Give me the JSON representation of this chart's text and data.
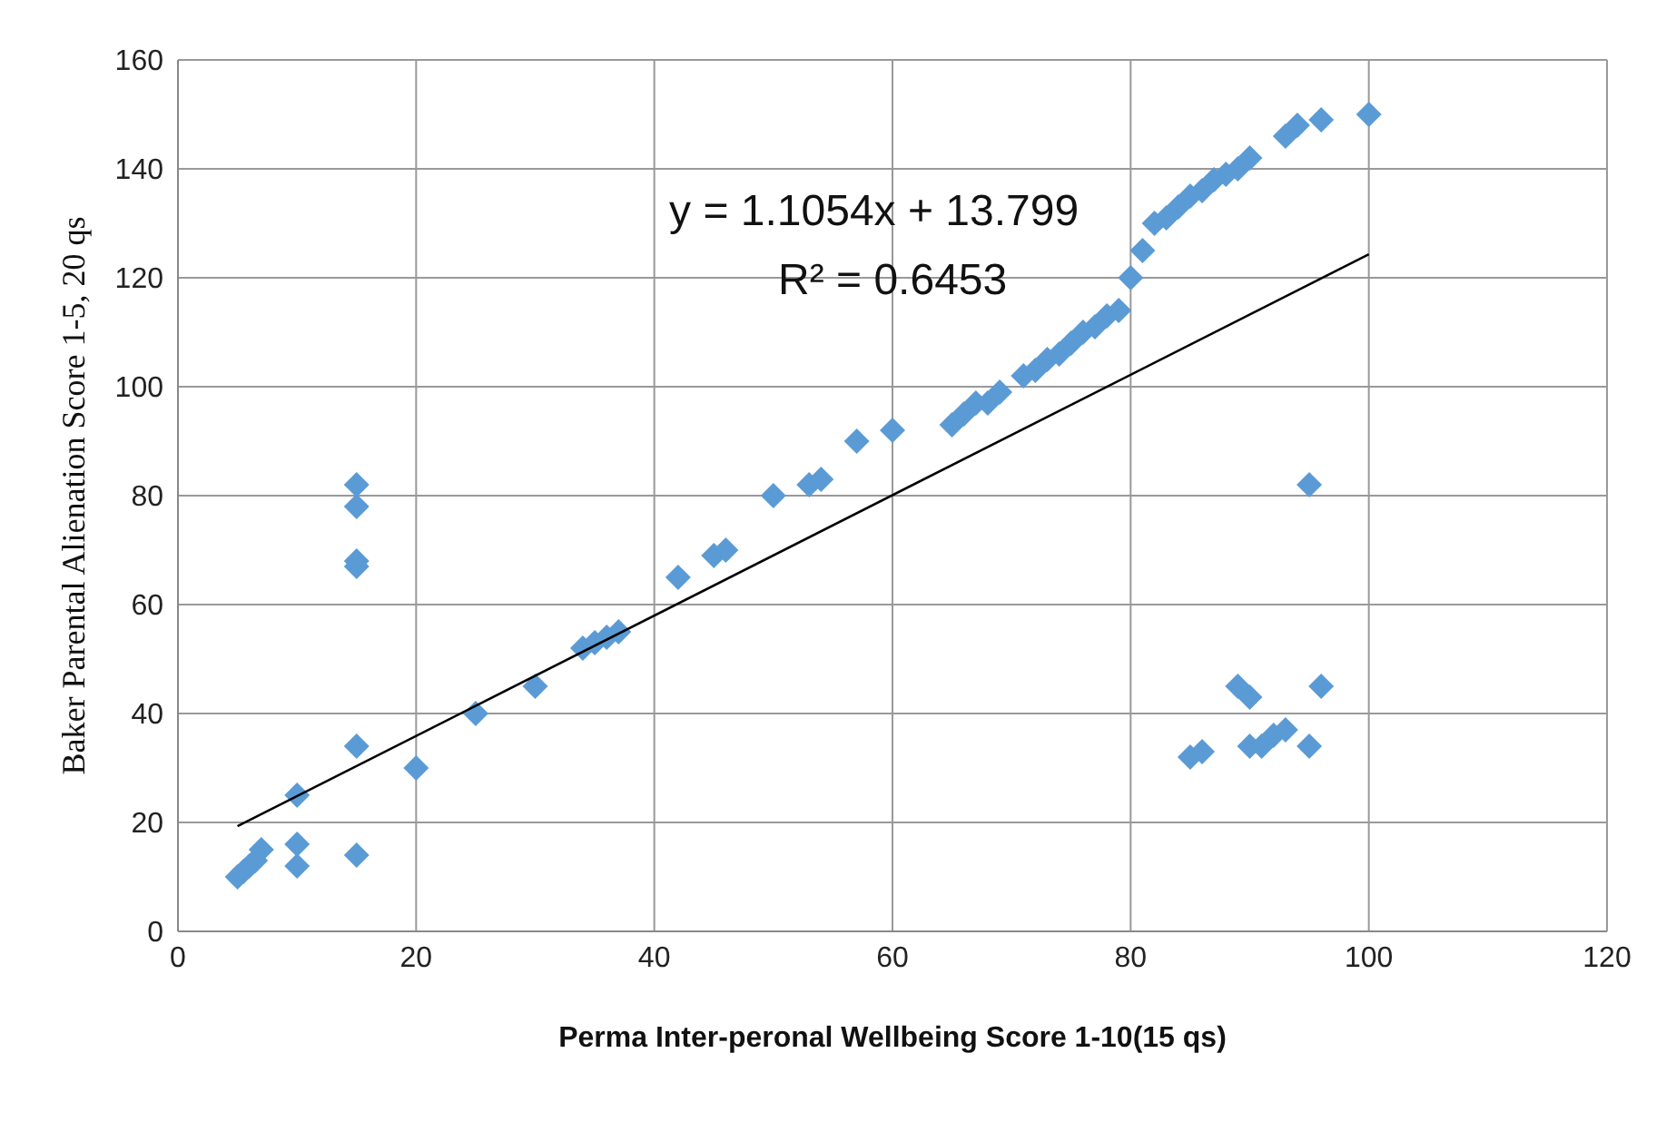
{
  "chart_data": {
    "type": "scatter",
    "xlabel": "Perma Inter-peronal  Wellbeing Score  1-10(15 qs)",
    "ylabel": "Baker Parental Alienation Score 1-5, 20 qs",
    "xlim": [
      0,
      120
    ],
    "xticks": [
      0,
      20,
      40,
      60,
      80,
      100,
      120
    ],
    "ylim": [
      0,
      160
    ],
    "yticks": [
      0,
      20,
      40,
      60,
      80,
      100,
      120,
      140,
      160
    ],
    "grid": true,
    "annotations": [
      "y = 1.1054x + 13.799",
      "R² = 0.6453"
    ],
    "series": [
      {
        "color": "#5b9bd5",
        "marker": "diamond",
        "x": [
          5,
          5.5,
          6,
          6.5,
          7,
          10,
          10,
          10,
          15,
          15,
          15,
          15,
          15,
          15,
          20,
          25,
          30,
          34,
          35,
          36,
          37,
          42,
          45,
          46,
          50,
          53,
          54,
          57,
          60,
          65,
          66,
          67,
          68,
          69,
          71,
          72,
          73,
          74,
          75,
          76,
          77,
          78,
          79,
          80,
          81,
          82,
          83,
          84,
          85,
          86,
          87,
          88,
          89,
          90,
          93,
          94,
          96,
          100,
          95,
          85,
          86,
          89,
          90,
          90,
          91,
          92,
          93,
          95,
          96
        ],
        "values": [
          10,
          11,
          12,
          13,
          15,
          25,
          16,
          12,
          82,
          78,
          68,
          67,
          34,
          14,
          30,
          40,
          45,
          52,
          53,
          54,
          55,
          65,
          69,
          70,
          80,
          82,
          83,
          90,
          92,
          93,
          95,
          97,
          97,
          99,
          102,
          103,
          105,
          106,
          108,
          110,
          111,
          113,
          114,
          120,
          125,
          130,
          131,
          133,
          135,
          136,
          138,
          139,
          140,
          142,
          146,
          148,
          149,
          150,
          82,
          32,
          33,
          45,
          43,
          34,
          34,
          36,
          37,
          34,
          45
        ]
      },
      {
        "type": "line",
        "color": "#000000",
        "marker": "none",
        "x": [
          5,
          100
        ],
        "values": [
          19.3,
          124.3
        ]
      }
    ]
  }
}
